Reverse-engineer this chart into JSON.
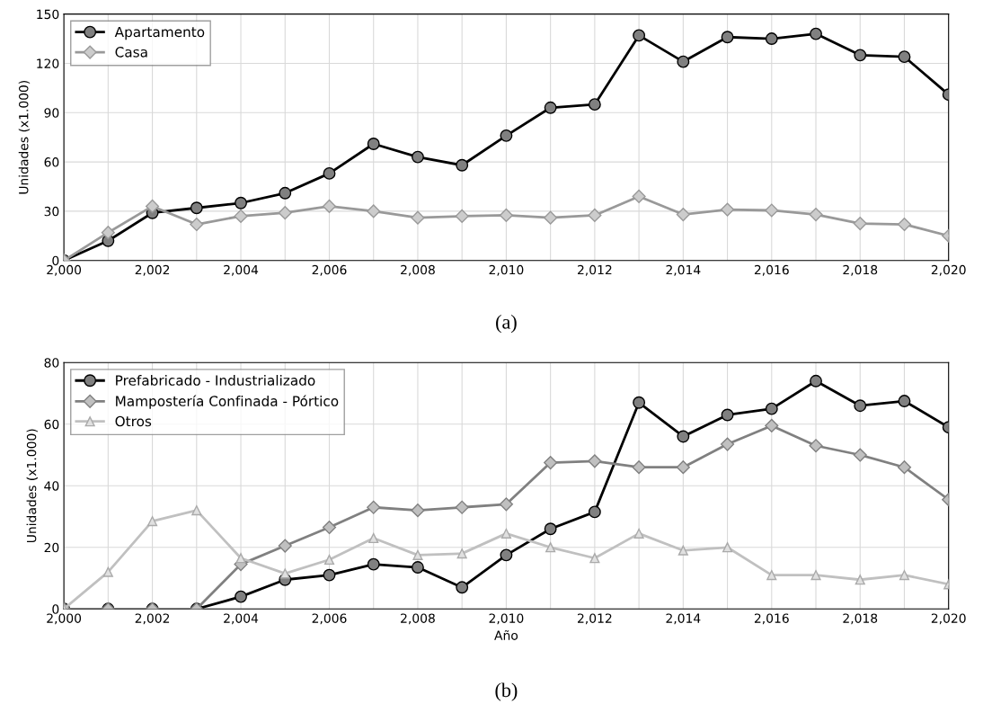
{
  "chart_data": [
    {
      "type": "line",
      "ylabel": "Unidades (x1.000)",
      "annotations": [
        "(a)"
      ],
      "categories": [
        "2,000",
        null,
        "2,002",
        null,
        "2,004",
        null,
        "2,006",
        null,
        "2,008",
        null,
        "2,010",
        null,
        "2,012",
        null,
        "2,014",
        null,
        "2,016",
        null,
        "2,018",
        null,
        "2,020"
      ],
      "series": [
        {
          "name": "Apartamento",
          "color": "#000000",
          "marker": "circle",
          "values": [
            0,
            12,
            29,
            32,
            35,
            41,
            53,
            71,
            63,
            58,
            76,
            93,
            95,
            137,
            121,
            136,
            135,
            138,
            125,
            124,
            101
          ]
        },
        {
          "name": "Casa",
          "color": "#999999",
          "marker": "diamond",
          "values": [
            0,
            17,
            33,
            22,
            27,
            29,
            33,
            30,
            26,
            27,
            27.5,
            26,
            27.5,
            39,
            28,
            31,
            30.5,
            28,
            22.5,
            22,
            15
          ]
        }
      ],
      "ylim": [
        0,
        150
      ],
      "yticks": [
        0,
        30,
        60,
        90,
        120,
        150
      ],
      "grid": true,
      "legend": "top left"
    },
    {
      "type": "line",
      "xlabel": "Año",
      "ylabel": "Unidades (x1.000)",
      "annotations": [
        "(b)"
      ],
      "categories": [
        "2,000",
        null,
        "2,002",
        null,
        "2,004",
        null,
        "2,006",
        null,
        "2,008",
        null,
        "2,010",
        null,
        "2,012",
        null,
        "2,014",
        null,
        "2,016",
        null,
        "2,018",
        null,
        "2,020"
      ],
      "series": [
        {
          "name": "Prefabricado - Industrializado",
          "color": "#000000",
          "marker": "circle",
          "values": [
            0,
            0,
            0,
            0,
            4,
            9.5,
            11,
            14.5,
            13.5,
            7,
            17.5,
            26,
            31.5,
            67,
            56,
            63,
            65,
            74,
            66,
            67.5,
            59
          ]
        },
        {
          "name": "Mampostería Confinada - Pórtico",
          "color": "#808080",
          "marker": "diamond",
          "values": [
            0,
            0,
            0,
            0,
            14.5,
            20.5,
            26.5,
            33,
            32,
            33,
            34,
            47.5,
            48,
            46,
            46,
            53.5,
            59.5,
            53,
            50,
            46,
            35.5
          ]
        },
        {
          "name": "Otros",
          "color": "#c0c0c0",
          "marker": "triangle",
          "values": [
            0,
            12,
            28.5,
            32,
            16.5,
            11.5,
            16,
            23,
            17.5,
            18,
            24.5,
            20,
            16.5,
            24.5,
            19,
            20,
            11,
            11,
            9.5,
            11,
            8
          ]
        }
      ],
      "ylim": [
        0,
        80
      ],
      "yticks": [
        0,
        20,
        40,
        60,
        80
      ],
      "grid": true,
      "legend": "top left"
    }
  ]
}
